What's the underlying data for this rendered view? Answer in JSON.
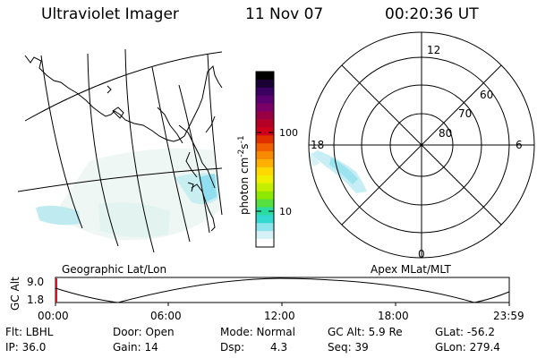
{
  "header": {
    "instrument": "Ultraviolet Imager",
    "date": "11 Nov 07",
    "time": "00:20:36 UT"
  },
  "geo_panel": {
    "label": "Geographic Lat/Lon"
  },
  "colorbar": {
    "unit_label": "photon cm",
    "unit_exp1": "-2",
    "unit_mid": "s",
    "unit_exp2": "-1",
    "ticks": [
      "100",
      "10"
    ],
    "colors": [
      "#000000",
      "#1a0033",
      "#3a005f",
      "#5b0070",
      "#7a0068",
      "#990044",
      "#b40024",
      "#cc0018",
      "#e03000",
      "#f06000",
      "#f88a00",
      "#ffb000",
      "#ffd800",
      "#eef000",
      "#c4f000",
      "#8ee800",
      "#55e040",
      "#2adca0",
      "#33d8d0",
      "#8ee4ec",
      "#d6f2f6",
      "#ffffff"
    ]
  },
  "polar_panel": {
    "label": "Apex MLat/MLT",
    "mlt_12": "12",
    "mlt_18": "18",
    "mlt_6": "6",
    "mlt_0": "0",
    "lat_60": "60",
    "lat_70": "70",
    "lat_80": "80"
  },
  "orbit_plot": {
    "ylabel": "GC Alt",
    "y_top": "9.0",
    "y_bottom": "1.8",
    "x_ticks": [
      "00:00",
      "06:00",
      "12:00",
      "18:00",
      "23:59"
    ]
  },
  "info": {
    "flt": "Flt: LBHL",
    "door": "Door: Open",
    "mode": "Mode: Normal",
    "gc_alt": "GC Alt: 5.9 Re",
    "glat": "GLat: -56.2",
    "ip": "IP: 36.0",
    "gain": "Gain: 14",
    "dsp_label": "Dsp:",
    "dsp_value": "4.3",
    "seq": "Seq: 39",
    "glon": "GLon: 279.4"
  }
}
